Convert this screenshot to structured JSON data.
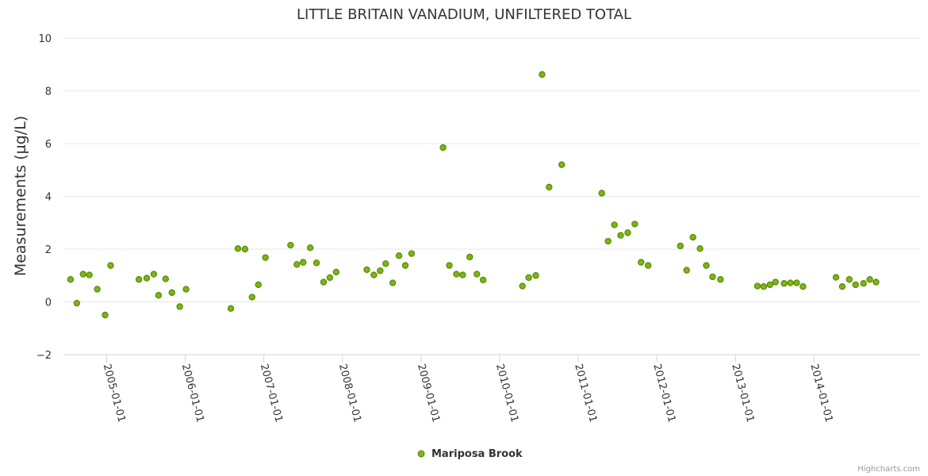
{
  "chart_data": {
    "type": "scatter",
    "title": "LITTLE BRITAIN VANADIUM, UNFILTERED TOTAL",
    "xlabel": "",
    "ylabel": "Measurements (µg/L)",
    "ylim": [
      -2,
      10
    ],
    "yticks": [
      -2,
      0,
      2,
      4,
      6,
      8,
      10
    ],
    "yticklabels": [
      "−2",
      "0",
      "2",
      "4",
      "6",
      "8",
      "10"
    ],
    "xlim": [
      2004.45,
      2015.35
    ],
    "xticks": [
      2005,
      2006,
      2007,
      2008,
      2009,
      2010,
      2011,
      2012,
      2013,
      2014
    ],
    "xticklabels": [
      "2005-01-01",
      "2006-01-01",
      "2007-01-01",
      "2008-01-01",
      "2009-01-01",
      "2010-01-01",
      "2011-01-01",
      "2012-01-01",
      "2013-01-01",
      "2014-01-01"
    ],
    "grid": true,
    "legend_position": "bottom-center",
    "series": [
      {
        "name": "Mariposa Brook",
        "color": "#7cb518",
        "stroke": "#5a8a00",
        "points": [
          [
            2004.54,
            0.85
          ],
          [
            2004.62,
            -0.05
          ],
          [
            2004.7,
            1.05
          ],
          [
            2004.78,
            1.02
          ],
          [
            2004.88,
            0.48
          ],
          [
            2004.98,
            -0.5
          ],
          [
            2005.05,
            1.38
          ],
          [
            2005.41,
            0.85
          ],
          [
            2005.51,
            0.9
          ],
          [
            2005.6,
            1.05
          ],
          [
            2005.66,
            0.25
          ],
          [
            2005.75,
            0.87
          ],
          [
            2005.83,
            0.35
          ],
          [
            2005.93,
            -0.18
          ],
          [
            2006.01,
            0.48
          ],
          [
            2006.58,
            -0.25
          ],
          [
            2006.67,
            2.02
          ],
          [
            2006.76,
            2.0
          ],
          [
            2006.85,
            0.18
          ],
          [
            2006.93,
            0.65
          ],
          [
            2007.02,
            1.68
          ],
          [
            2007.34,
            2.15
          ],
          [
            2007.42,
            1.42
          ],
          [
            2007.5,
            1.5
          ],
          [
            2007.59,
            2.05
          ],
          [
            2007.67,
            1.48
          ],
          [
            2007.76,
            0.75
          ],
          [
            2007.84,
            0.92
          ],
          [
            2007.92,
            1.13
          ],
          [
            2008.31,
            1.22
          ],
          [
            2008.4,
            1.02
          ],
          [
            2008.48,
            1.18
          ],
          [
            2008.55,
            1.45
          ],
          [
            2008.64,
            0.72
          ],
          [
            2008.72,
            1.75
          ],
          [
            2008.8,
            1.38
          ],
          [
            2008.88,
            1.83
          ],
          [
            2009.28,
            5.85
          ],
          [
            2009.36,
            1.38
          ],
          [
            2009.45,
            1.05
          ],
          [
            2009.53,
            1.02
          ],
          [
            2009.62,
            1.7
          ],
          [
            2009.71,
            1.05
          ],
          [
            2009.79,
            0.83
          ],
          [
            2010.29,
            0.6
          ],
          [
            2010.37,
            0.92
          ],
          [
            2010.46,
            1.0
          ],
          [
            2010.54,
            8.62
          ],
          [
            2010.63,
            4.35
          ],
          [
            2010.79,
            5.2
          ],
          [
            2011.3,
            4.12
          ],
          [
            2011.38,
            2.3
          ],
          [
            2011.46,
            2.92
          ],
          [
            2011.54,
            2.52
          ],
          [
            2011.63,
            2.62
          ],
          [
            2011.72,
            2.95
          ],
          [
            2011.8,
            1.5
          ],
          [
            2011.89,
            1.38
          ],
          [
            2012.3,
            2.12
          ],
          [
            2012.38,
            1.2
          ],
          [
            2012.46,
            2.45
          ],
          [
            2012.55,
            2.02
          ],
          [
            2012.63,
            1.38
          ],
          [
            2012.71,
            0.95
          ],
          [
            2012.81,
            0.85
          ],
          [
            2013.28,
            0.6
          ],
          [
            2013.36,
            0.58
          ],
          [
            2013.44,
            0.65
          ],
          [
            2013.51,
            0.75
          ],
          [
            2013.62,
            0.7
          ],
          [
            2013.7,
            0.72
          ],
          [
            2013.78,
            0.72
          ],
          [
            2013.86,
            0.58
          ],
          [
            2014.28,
            0.93
          ],
          [
            2014.36,
            0.58
          ],
          [
            2014.45,
            0.85
          ],
          [
            2014.53,
            0.65
          ],
          [
            2014.63,
            0.7
          ],
          [
            2014.71,
            0.85
          ],
          [
            2014.79,
            0.75
          ]
        ]
      }
    ]
  },
  "credit": "Highcharts.com"
}
